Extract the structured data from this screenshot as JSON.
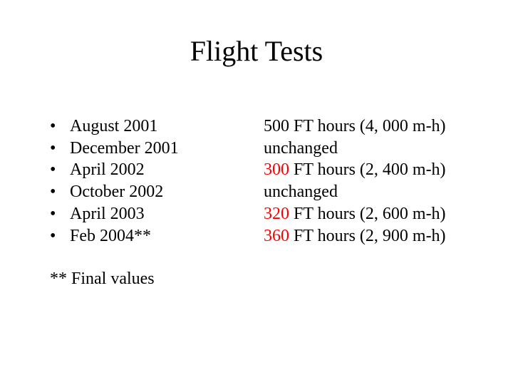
{
  "title": "Flight Tests",
  "bullet_glyph": "•",
  "rows": [
    {
      "date": "August 2001",
      "value_prefix": "500",
      "value_suffix": " FT hours (4, 000 m-h)",
      "prefix_color": "#000000"
    },
    {
      "date": "December 2001",
      "value_prefix": "",
      "value_suffix": "unchanged",
      "prefix_color": "#000000"
    },
    {
      "date": "April 2002",
      "value_prefix": "300",
      "value_suffix": " FT hours (2, 400 m-h)",
      "prefix_color": "#ff0000"
    },
    {
      "date": "October 2002",
      "value_prefix": "",
      "value_suffix": "unchanged",
      "prefix_color": "#000000"
    },
    {
      "date": "April 2003",
      "value_prefix": "320",
      "value_suffix": " FT hours (2, 600 m-h)",
      "prefix_color": "#ff0000"
    },
    {
      "date": "Feb 2004**",
      "value_prefix": "360",
      "value_suffix": " FT hours (2, 900 m-h)",
      "prefix_color": "#ff0000"
    }
  ],
  "footnote": "** Final values"
}
